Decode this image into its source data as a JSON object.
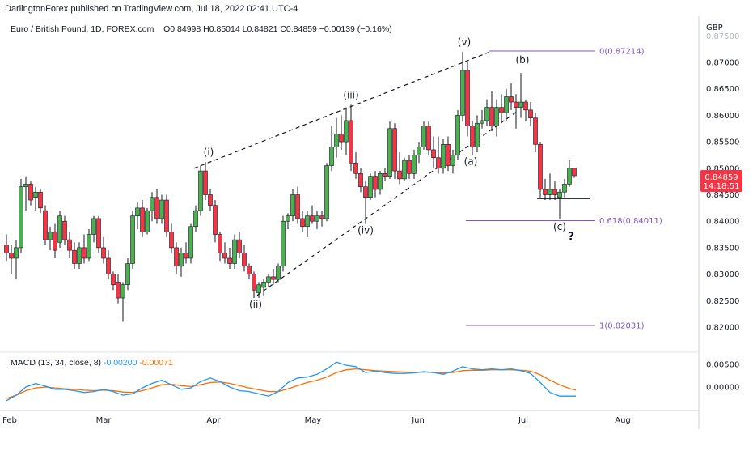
{
  "header": {
    "publisher": "DarlingtonForex published on TradingView.com, Jul 18, 2022 02:41 UTC-4",
    "symbol": "Euro / British Pound, 1D, FOREX.com",
    "open": "O0.84998",
    "high": "H0.85014",
    "low": "L0.84821",
    "close": "C0.84859",
    "change": "−0.00139 (−0.16%)",
    "currency": "GBP"
  },
  "price_badge": {
    "price": "0.84859",
    "countdown": "14:18:51",
    "color": "#f23645"
  },
  "macd": {
    "label": "MACD (13, 34, close, 8)",
    "macd_value": "-0.00200",
    "signal_value": "-0.00071",
    "macd_color": "#2196f3",
    "signal_color": "#ff6d00",
    "y_ticks": [
      "0.00500",
      "0.00000"
    ]
  },
  "colors": {
    "up": "#4caf50",
    "down": "#f23645",
    "fib": "#7e57c2",
    "text": "#131722"
  },
  "chart_data": {
    "type": "candlestick",
    "instrument": "EUR/GBP",
    "timeframe": "1D",
    "y_axis_ticks": [
      "0.82000",
      "0.82500",
      "0.83000",
      "0.83500",
      "0.84000",
      "0.84500",
      "0.85000",
      "0.85500",
      "0.86000",
      "0.86500",
      "0.87000",
      "0.87500"
    ],
    "ylim": [
      0.8165,
      0.8785
    ],
    "x_axis_ticks": [
      "Feb",
      "Mar",
      "Apr",
      "May",
      "Jun",
      "Jul",
      "Aug"
    ],
    "candles": [
      {
        "x": 8,
        "o": 0.8355,
        "h": 0.8375,
        "l": 0.8325,
        "c": 0.834
      },
      {
        "x": 14,
        "o": 0.834,
        "h": 0.8355,
        "l": 0.83,
        "c": 0.833
      },
      {
        "x": 20,
        "o": 0.833,
        "h": 0.8365,
        "l": 0.829,
        "c": 0.835
      },
      {
        "x": 26,
        "o": 0.835,
        "h": 0.848,
        "l": 0.834,
        "c": 0.8465
      },
      {
        "x": 32,
        "o": 0.8465,
        "h": 0.8485,
        "l": 0.842,
        "c": 0.847
      },
      {
        "x": 38,
        "o": 0.847,
        "h": 0.8475,
        "l": 0.843,
        "c": 0.844
      },
      {
        "x": 44,
        "o": 0.8445,
        "h": 0.8465,
        "l": 0.842,
        "c": 0.8455
      },
      {
        "x": 50,
        "o": 0.8455,
        "h": 0.846,
        "l": 0.8415,
        "c": 0.8425
      },
      {
        "x": 56,
        "o": 0.842,
        "h": 0.843,
        "l": 0.8355,
        "c": 0.8365
      },
      {
        "x": 62,
        "o": 0.8365,
        "h": 0.839,
        "l": 0.8345,
        "c": 0.838
      },
      {
        "x": 68,
        "o": 0.838,
        "h": 0.8395,
        "l": 0.833,
        "c": 0.8345
      },
      {
        "x": 74,
        "o": 0.836,
        "h": 0.842,
        "l": 0.835,
        "c": 0.841
      },
      {
        "x": 80,
        "o": 0.84,
        "h": 0.841,
        "l": 0.8355,
        "c": 0.8365
      },
      {
        "x": 86,
        "o": 0.8365,
        "h": 0.838,
        "l": 0.833,
        "c": 0.8345
      },
      {
        "x": 92,
        "o": 0.8345,
        "h": 0.836,
        "l": 0.831,
        "c": 0.832
      },
      {
        "x": 98,
        "o": 0.832,
        "h": 0.836,
        "l": 0.831,
        "c": 0.835
      },
      {
        "x": 104,
        "o": 0.835,
        "h": 0.8375,
        "l": 0.832,
        "c": 0.833
      },
      {
        "x": 110,
        "o": 0.833,
        "h": 0.8385,
        "l": 0.8325,
        "c": 0.8375
      },
      {
        "x": 116,
        "o": 0.8375,
        "h": 0.841,
        "l": 0.836,
        "c": 0.8405
      },
      {
        "x": 122,
        "o": 0.8405,
        "h": 0.841,
        "l": 0.834,
        "c": 0.835
      },
      {
        "x": 128,
        "o": 0.835,
        "h": 0.837,
        "l": 0.832,
        "c": 0.833
      },
      {
        "x": 134,
        "o": 0.833,
        "h": 0.8345,
        "l": 0.829,
        "c": 0.83
      },
      {
        "x": 140,
        "o": 0.83,
        "h": 0.8305,
        "l": 0.827,
        "c": 0.828
      },
      {
        "x": 146,
        "o": 0.8285,
        "h": 0.83,
        "l": 0.8245,
        "c": 0.8255
      },
      {
        "x": 152,
        "o": 0.8255,
        "h": 0.8285,
        "l": 0.821,
        "c": 0.828
      },
      {
        "x": 158,
        "o": 0.828,
        "h": 0.833,
        "l": 0.827,
        "c": 0.832
      },
      {
        "x": 164,
        "o": 0.832,
        "h": 0.842,
        "l": 0.831,
        "c": 0.841
      },
      {
        "x": 170,
        "o": 0.841,
        "h": 0.8435,
        "l": 0.8385,
        "c": 0.8425
      },
      {
        "x": 176,
        "o": 0.8425,
        "h": 0.844,
        "l": 0.837,
        "c": 0.838
      },
      {
        "x": 182,
        "o": 0.838,
        "h": 0.8425,
        "l": 0.8375,
        "c": 0.842
      },
      {
        "x": 188,
        "o": 0.842,
        "h": 0.8455,
        "l": 0.84,
        "c": 0.8445
      },
      {
        "x": 194,
        "o": 0.8445,
        "h": 0.846,
        "l": 0.8395,
        "c": 0.8405
      },
      {
        "x": 200,
        "o": 0.8405,
        "h": 0.845,
        "l": 0.8395,
        "c": 0.844
      },
      {
        "x": 206,
        "o": 0.844,
        "h": 0.845,
        "l": 0.837,
        "c": 0.838
      },
      {
        "x": 212,
        "o": 0.838,
        "h": 0.8395,
        "l": 0.834,
        "c": 0.835
      },
      {
        "x": 218,
        "o": 0.835,
        "h": 0.836,
        "l": 0.83,
        "c": 0.8315
      },
      {
        "x": 224,
        "o": 0.8315,
        "h": 0.835,
        "l": 0.8295,
        "c": 0.834
      },
      {
        "x": 230,
        "o": 0.834,
        "h": 0.836,
        "l": 0.832,
        "c": 0.833
      },
      {
        "x": 236,
        "o": 0.833,
        "h": 0.8395,
        "l": 0.832,
        "c": 0.839
      },
      {
        "x": 242,
        "o": 0.839,
        "h": 0.843,
        "l": 0.838,
        "c": 0.842
      },
      {
        "x": 248,
        "o": 0.842,
        "h": 0.8505,
        "l": 0.841,
        "c": 0.8495
      },
      {
        "x": 254,
        "o": 0.8495,
        "h": 0.8512,
        "l": 0.844,
        "c": 0.845
      },
      {
        "x": 260,
        "o": 0.845,
        "h": 0.846,
        "l": 0.842,
        "c": 0.843
      },
      {
        "x": 266,
        "o": 0.843,
        "h": 0.844,
        "l": 0.836,
        "c": 0.8375
      },
      {
        "x": 272,
        "o": 0.8375,
        "h": 0.838,
        "l": 0.8325,
        "c": 0.834
      },
      {
        "x": 278,
        "o": 0.834,
        "h": 0.836,
        "l": 0.832,
        "c": 0.833
      },
      {
        "x": 284,
        "o": 0.833,
        "h": 0.835,
        "l": 0.831,
        "c": 0.832
      },
      {
        "x": 290,
        "o": 0.832,
        "h": 0.8375,
        "l": 0.831,
        "c": 0.8365
      },
      {
        "x": 296,
        "o": 0.8365,
        "h": 0.838,
        "l": 0.833,
        "c": 0.834
      },
      {
        "x": 302,
        "o": 0.834,
        "h": 0.8355,
        "l": 0.8305,
        "c": 0.8315
      },
      {
        "x": 308,
        "o": 0.8315,
        "h": 0.832,
        "l": 0.829,
        "c": 0.83
      },
      {
        "x": 314,
        "o": 0.83,
        "h": 0.8305,
        "l": 0.8255,
        "c": 0.827
      },
      {
        "x": 320,
        "o": 0.8265,
        "h": 0.8285,
        "l": 0.8255,
        "c": 0.828
      },
      {
        "x": 326,
        "o": 0.8275,
        "h": 0.829,
        "l": 0.826,
        "c": 0.8285
      },
      {
        "x": 332,
        "o": 0.8285,
        "h": 0.83,
        "l": 0.8275,
        "c": 0.8295
      },
      {
        "x": 338,
        "o": 0.8295,
        "h": 0.831,
        "l": 0.828,
        "c": 0.829
      },
      {
        "x": 344,
        "o": 0.829,
        "h": 0.832,
        "l": 0.8285,
        "c": 0.8315
      },
      {
        "x": 350,
        "o": 0.8315,
        "h": 0.841,
        "l": 0.8305,
        "c": 0.84
      },
      {
        "x": 356,
        "o": 0.84,
        "h": 0.8415,
        "l": 0.8385,
        "c": 0.841
      },
      {
        "x": 362,
        "o": 0.841,
        "h": 0.846,
        "l": 0.84,
        "c": 0.845
      },
      {
        "x": 368,
        "o": 0.845,
        "h": 0.8465,
        "l": 0.8395,
        "c": 0.8405
      },
      {
        "x": 374,
        "o": 0.8405,
        "h": 0.842,
        "l": 0.838,
        "c": 0.839
      },
      {
        "x": 380,
        "o": 0.839,
        "h": 0.842,
        "l": 0.837,
        "c": 0.841
      },
      {
        "x": 386,
        "o": 0.841,
        "h": 0.843,
        "l": 0.8395,
        "c": 0.84
      },
      {
        "x": 392,
        "o": 0.84,
        "h": 0.842,
        "l": 0.8385,
        "c": 0.841
      },
      {
        "x": 398,
        "o": 0.841,
        "h": 0.842,
        "l": 0.839,
        "c": 0.8405
      },
      {
        "x": 404,
        "o": 0.8405,
        "h": 0.851,
        "l": 0.84,
        "c": 0.8505
      },
      {
        "x": 410,
        "o": 0.8505,
        "h": 0.858,
        "l": 0.8495,
        "c": 0.854
      },
      {
        "x": 416,
        "o": 0.854,
        "h": 0.8595,
        "l": 0.852,
        "c": 0.8565
      },
      {
        "x": 422,
        "o": 0.8565,
        "h": 0.86,
        "l": 0.8535,
        "c": 0.855
      },
      {
        "x": 428,
        "o": 0.855,
        "h": 0.8615,
        "l": 0.8525,
        "c": 0.859
      },
      {
        "x": 434,
        "o": 0.859,
        "h": 0.862,
        "l": 0.8495,
        "c": 0.851
      },
      {
        "x": 440,
        "o": 0.851,
        "h": 0.853,
        "l": 0.848,
        "c": 0.849
      },
      {
        "x": 446,
        "o": 0.849,
        "h": 0.85,
        "l": 0.8455,
        "c": 0.8465
      },
      {
        "x": 452,
        "o": 0.8465,
        "h": 0.8475,
        "l": 0.8395,
        "c": 0.8445
      },
      {
        "x": 458,
        "o": 0.8445,
        "h": 0.849,
        "l": 0.844,
        "c": 0.8485
      },
      {
        "x": 464,
        "o": 0.8485,
        "h": 0.8495,
        "l": 0.8445,
        "c": 0.846
      },
      {
        "x": 470,
        "o": 0.846,
        "h": 0.8495,
        "l": 0.845,
        "c": 0.849
      },
      {
        "x": 476,
        "o": 0.849,
        "h": 0.85,
        "l": 0.8475,
        "c": 0.8485
      },
      {
        "x": 482,
        "o": 0.8485,
        "h": 0.859,
        "l": 0.848,
        "c": 0.8575
      },
      {
        "x": 488,
        "o": 0.8575,
        "h": 0.8585,
        "l": 0.848,
        "c": 0.8495
      },
      {
        "x": 494,
        "o": 0.8495,
        "h": 0.853,
        "l": 0.847,
        "c": 0.848
      },
      {
        "x": 500,
        "o": 0.848,
        "h": 0.852,
        "l": 0.8475,
        "c": 0.8515
      },
      {
        "x": 506,
        "o": 0.8515,
        "h": 0.8525,
        "l": 0.848,
        "c": 0.849
      },
      {
        "x": 512,
        "o": 0.849,
        "h": 0.8535,
        "l": 0.848,
        "c": 0.8525
      },
      {
        "x": 518,
        "o": 0.8525,
        "h": 0.855,
        "l": 0.851,
        "c": 0.854
      },
      {
        "x": 524,
        "o": 0.854,
        "h": 0.859,
        "l": 0.8535,
        "c": 0.858
      },
      {
        "x": 530,
        "o": 0.858,
        "h": 0.859,
        "l": 0.8525,
        "c": 0.8535
      },
      {
        "x": 536,
        "o": 0.8535,
        "h": 0.856,
        "l": 0.85,
        "c": 0.852
      },
      {
        "x": 542,
        "o": 0.852,
        "h": 0.856,
        "l": 0.849,
        "c": 0.85
      },
      {
        "x": 548,
        "o": 0.85,
        "h": 0.8555,
        "l": 0.849,
        "c": 0.8545
      },
      {
        "x": 554,
        "o": 0.8545,
        "h": 0.856,
        "l": 0.8495,
        "c": 0.8505
      },
      {
        "x": 560,
        "o": 0.8505,
        "h": 0.8535,
        "l": 0.849,
        "c": 0.8525
      },
      {
        "x": 566,
        "o": 0.8525,
        "h": 0.861,
        "l": 0.8515,
        "c": 0.86
      },
      {
        "x": 572,
        "o": 0.86,
        "h": 0.872,
        "l": 0.859,
        "c": 0.8685
      },
      {
        "x": 578,
        "o": 0.8685,
        "h": 0.87,
        "l": 0.856,
        "c": 0.858
      },
      {
        "x": 584,
        "o": 0.858,
        "h": 0.859,
        "l": 0.8525,
        "c": 0.854
      },
      {
        "x": 590,
        "o": 0.854,
        "h": 0.86,
        "l": 0.853,
        "c": 0.8585
      },
      {
        "x": 596,
        "o": 0.8585,
        "h": 0.861,
        "l": 0.8575,
        "c": 0.859
      },
      {
        "x": 602,
        "o": 0.859,
        "h": 0.863,
        "l": 0.858,
        "c": 0.8615
      },
      {
        "x": 608,
        "o": 0.8615,
        "h": 0.8645,
        "l": 0.857,
        "c": 0.858
      },
      {
        "x": 614,
        "o": 0.858,
        "h": 0.863,
        "l": 0.856,
        "c": 0.8615
      },
      {
        "x": 620,
        "o": 0.8615,
        "h": 0.864,
        "l": 0.859,
        "c": 0.8605
      },
      {
        "x": 626,
        "o": 0.8605,
        "h": 0.865,
        "l": 0.859,
        "c": 0.8635
      },
      {
        "x": 632,
        "o": 0.8635,
        "h": 0.866,
        "l": 0.861,
        "c": 0.8625
      },
      {
        "x": 638,
        "o": 0.8625,
        "h": 0.864,
        "l": 0.8575,
        "c": 0.8615
      },
      {
        "x": 644,
        "o": 0.8615,
        "h": 0.868,
        "l": 0.8595,
        "c": 0.8625
      },
      {
        "x": 650,
        "o": 0.8625,
        "h": 0.863,
        "l": 0.859,
        "c": 0.861
      },
      {
        "x": 656,
        "o": 0.861,
        "h": 0.8625,
        "l": 0.858,
        "c": 0.8595
      },
      {
        "x": 662,
        "o": 0.8595,
        "h": 0.8605,
        "l": 0.853,
        "c": 0.8545
      },
      {
        "x": 668,
        "o": 0.8545,
        "h": 0.855,
        "l": 0.8445,
        "c": 0.846
      },
      {
        "x": 674,
        "o": 0.846,
        "h": 0.848,
        "l": 0.844,
        "c": 0.845
      },
      {
        "x": 680,
        "o": 0.845,
        "h": 0.849,
        "l": 0.844,
        "c": 0.846
      },
      {
        "x": 686,
        "o": 0.846,
        "h": 0.8475,
        "l": 0.844,
        "c": 0.845
      },
      {
        "x": 692,
        "o": 0.8445,
        "h": 0.846,
        "l": 0.8405,
        "c": 0.8455
      },
      {
        "x": 698,
        "o": 0.8455,
        "h": 0.848,
        "l": 0.8445,
        "c": 0.847
      },
      {
        "x": 704,
        "o": 0.847,
        "h": 0.8515,
        "l": 0.8465,
        "c": 0.85
      },
      {
        "x": 710,
        "o": 0.85,
        "h": 0.8501,
        "l": 0.8482,
        "c": 0.8486
      }
    ],
    "annotations": [
      {
        "text": "(i)",
        "x": 258,
        "price": 0.8512
      },
      {
        "text": "(ii)",
        "x": 316,
        "price": 0.8255
      },
      {
        "text": "(iii)",
        "x": 434,
        "price": 0.862
      },
      {
        "text": "(iv)",
        "x": 452,
        "price": 0.8395
      },
      {
        "text": "(v)",
        "x": 574,
        "price": 0.872
      },
      {
        "text": "(a)",
        "x": 582,
        "price": 0.8525
      },
      {
        "text": "(b)",
        "x": 646,
        "price": 0.868
      },
      {
        "text": "(c)",
        "x": 692,
        "price": 0.8405
      },
      {
        "text": "?",
        "x": 706,
        "price": 0.8395
      }
    ],
    "fib_levels": [
      {
        "label": "0(0.87214)",
        "price": 0.87214
      },
      {
        "label": "0.618(0.84011)",
        "price": 0.84011
      },
      {
        "label": "1(0.82031)",
        "price": 0.82031
      }
    ],
    "support_line": {
      "price": 0.8443
    },
    "macd_series": {
      "x": [
        8,
        20,
        32,
        44,
        56,
        68,
        80,
        92,
        104,
        116,
        128,
        140,
        152,
        164,
        176,
        188,
        200,
        212,
        224,
        236,
        248,
        260,
        272,
        284,
        296,
        308,
        320,
        332,
        344,
        356,
        368,
        380,
        392,
        404,
        416,
        428,
        440,
        452,
        464,
        476,
        488,
        500,
        512,
        524,
        536,
        548,
        560,
        572,
        584,
        596,
        608,
        620,
        632,
        644,
        656,
        668,
        680,
        692,
        704,
        712
      ],
      "macd": [
        -0.003,
        -0.0018,
        0.0,
        0.0008,
        0.0002,
        -0.0005,
        -0.0005,
        -0.0008,
        -0.0012,
        -0.001,
        -0.0005,
        -0.001,
        -0.0018,
        -0.0015,
        -0.0002,
        0.0008,
        0.0015,
        0.0005,
        -0.0005,
        -0.0002,
        0.0012,
        0.002,
        0.0012,
        0.0,
        -0.0008,
        -0.001,
        -0.0015,
        -0.002,
        -0.001,
        0.001,
        0.002,
        0.0022,
        0.0028,
        0.004,
        0.0055,
        0.0048,
        0.0045,
        0.0032,
        0.0035,
        0.0032,
        0.003,
        0.003,
        0.0031,
        0.0034,
        0.0032,
        0.0028,
        0.0035,
        0.0045,
        0.004,
        0.0038,
        0.004,
        0.0038,
        0.004,
        0.0036,
        0.003,
        0.001,
        -0.0012,
        -0.002,
        -0.002,
        -0.002
      ],
      "signal": [
        -0.0025,
        -0.0018,
        -0.0008,
        -0.0002,
        0.0,
        -0.0002,
        -0.0004,
        -0.0005,
        -0.0007,
        -0.0008,
        -0.0007,
        -0.0008,
        -0.0011,
        -0.0012,
        -0.0008,
        -0.0002,
        0.0005,
        0.0006,
        0.0003,
        0.0001,
        0.0005,
        0.001,
        0.0011,
        0.0008,
        0.0003,
        -0.0002,
        -0.0006,
        -0.001,
        -0.001,
        -0.0004,
        0.0003,
        0.001,
        0.0015,
        0.0022,
        0.0032,
        0.0038,
        0.004,
        0.0038,
        0.0036,
        0.0035,
        0.0034,
        0.0033,
        0.0032,
        0.0033,
        0.0032,
        0.0031,
        0.0032,
        0.0036,
        0.0037,
        0.0037,
        0.0038,
        0.0038,
        0.0038,
        0.0037,
        0.0035,
        0.0027,
        0.0015,
        0.0005,
        -0.0003,
        -0.0007
      ]
    }
  }
}
